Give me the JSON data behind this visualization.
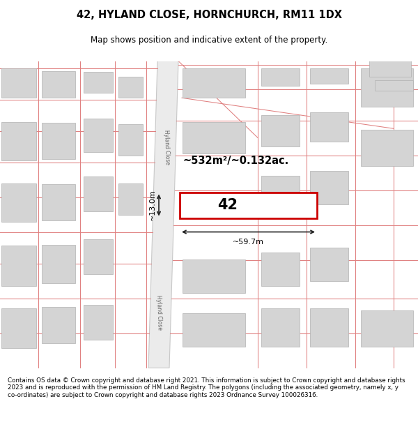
{
  "title": "42, HYLAND CLOSE, HORNCHURCH, RM11 1DX",
  "subtitle": "Map shows position and indicative extent of the property.",
  "footer": "Contains OS data © Crown copyright and database right 2021. This information is subject to Crown copyright and database rights 2023 and is reproduced with the permission of HM Land Registry. The polygons (including the associated geometry, namely x, y co-ordinates) are subject to Crown copyright and database rights 2023 Ordnance Survey 100026316.",
  "area_label": "~532m²/~0.132ac.",
  "width_label": "~59.7m",
  "height_label": "~13.0m",
  "plot_number": "42",
  "road_label_top": "Hyland Close",
  "road_label_bottom": "Hyland Close",
  "background_color": "#ffffff",
  "building_fill": "#d4d4d4",
  "building_stroke": "#b0b0b0",
  "plot_stroke": "#cc0000",
  "plot_fill": "#ffffff",
  "dim_line_color": "#222222",
  "pink_line_color": "#e08080",
  "road_fill": "#ebebeb",
  "road_edge": "#c8c8c8"
}
